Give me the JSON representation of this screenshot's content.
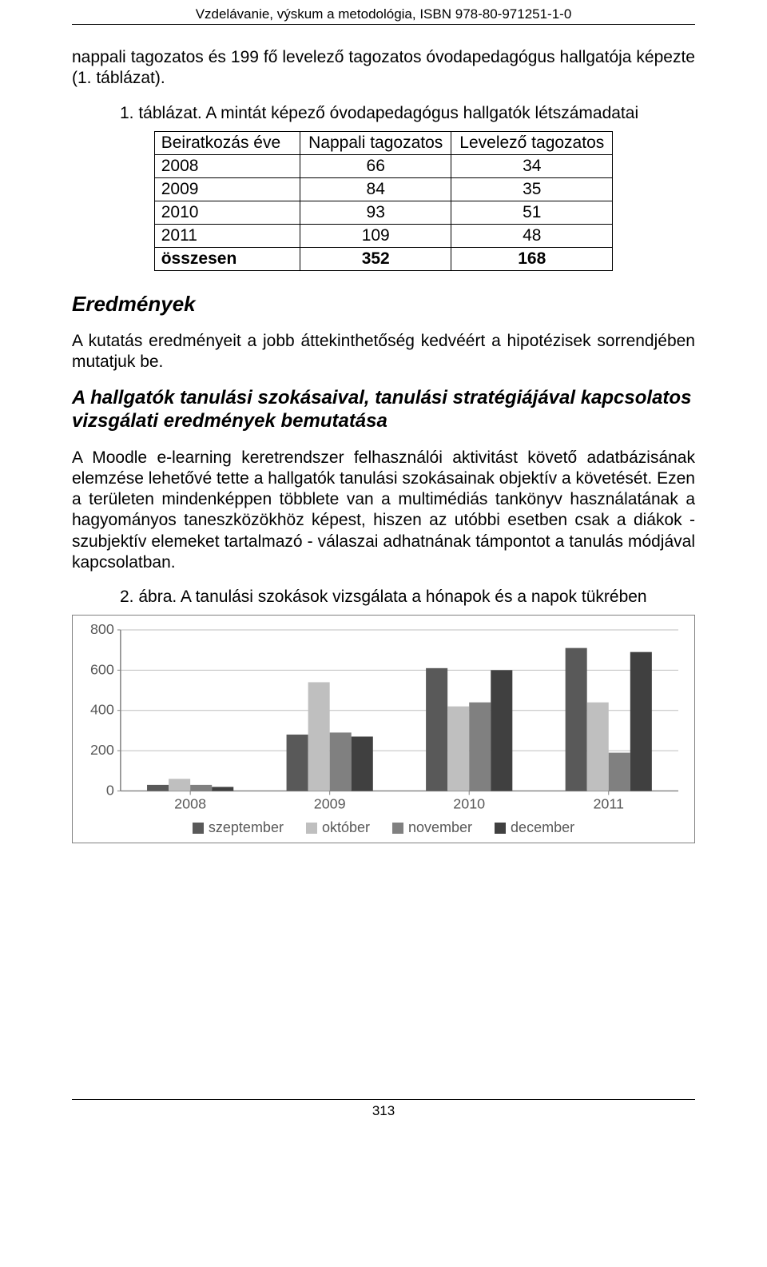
{
  "header": {
    "running": "Vzdelávanie, výskum a metodológia, ISBN 978-80-971251-1-0"
  },
  "intro": {
    "text": "nappali tagozatos és 199 fő levelező tagozatos óvodapedagógus hallgatója képezte (1. táblázat)."
  },
  "table": {
    "caption": "1. táblázat. A mintát képező óvodapedagógus hallgatók létszámadatai",
    "columns": [
      "Beiratkozás éve",
      "Nappali tagozatos",
      "Levelező tagozatos"
    ],
    "rows": [
      [
        "2008",
        "66",
        "34"
      ],
      [
        "2009",
        "84",
        "35"
      ],
      [
        "2010",
        "93",
        "51"
      ],
      [
        "2011",
        "109",
        "48"
      ]
    ],
    "total_row": [
      "összesen",
      "352",
      "168"
    ]
  },
  "results": {
    "heading": "Eredmények",
    "para": "A kutatás eredményeit a jobb áttekinthetőség kedvéért a hipotézisek sorrendjében mutatjuk be."
  },
  "subsection": {
    "heading": "A hallgatók tanulási szokásaival, tanulási stratégiájával kapcsolatos vizsgálati eredmények bemutatása",
    "para": "A Moodle e-learning keretrendszer felhasználói aktivitást követő adatbázisának elemzése lehetővé tette a hallgatók tanulási szokásainak objektív a követését. Ezen a területen mindenképpen többlete van a multimédiás tankönyv használatának a hagyományos taneszközökhöz képest, hiszen az utóbbi esetben csak a diákok - szubjektív elemeket tartalmazó - válaszai adhatnának támpontot a tanulás módjával kapcsolatban."
  },
  "figure": {
    "caption": "2. ábra. A tanulási szokások vizsgálata a hónapok és a napok tükrében"
  },
  "chart": {
    "type": "grouped-bar",
    "categories": [
      "2008",
      "2009",
      "2010",
      "2011"
    ],
    "series": [
      {
        "name": "szeptember",
        "color": "#595959",
        "values": [
          30,
          280,
          610,
          710
        ]
      },
      {
        "name": "október",
        "color": "#bfbfbf",
        "values": [
          60,
          540,
          420,
          440
        ]
      },
      {
        "name": "november",
        "color": "#808080",
        "values": [
          30,
          290,
          440,
          190
        ]
      },
      {
        "name": "december",
        "color": "#404040",
        "values": [
          20,
          270,
          600,
          690
        ]
      }
    ],
    "ylim": [
      0,
      800
    ],
    "ytick_step": 200,
    "background_color": "#ffffff",
    "grid_color": "#bfbfbf",
    "axis_color": "#808080",
    "tick_label_color": "#595959",
    "tick_fontsize": 18,
    "bar_gap": 0,
    "group_width": 0.62
  },
  "footer": {
    "page_number": "313"
  }
}
